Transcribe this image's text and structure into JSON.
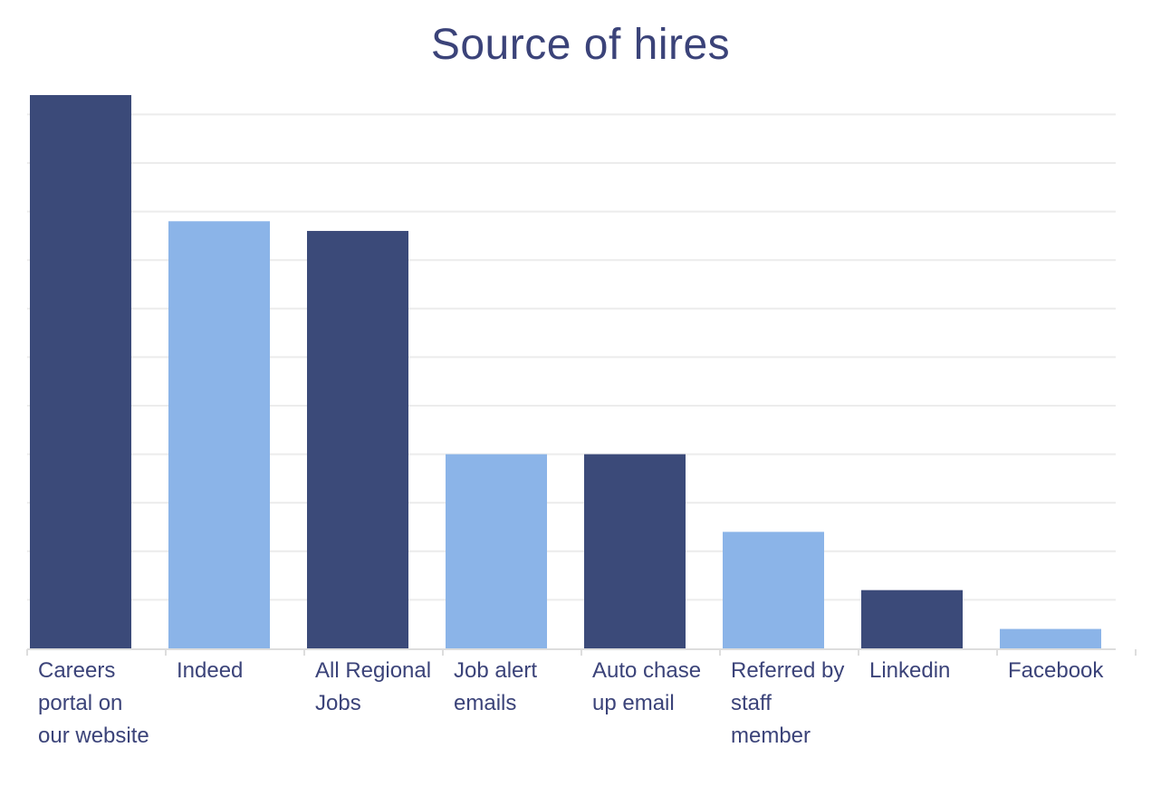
{
  "chart_data": {
    "type": "bar",
    "title": "Source of hires",
    "xlabel": "",
    "ylabel": "",
    "grid": true,
    "legend": "none",
    "ylim": [
      0,
      11
    ],
    "categories": [
      "Careers portal on our website",
      "Indeed",
      "All Regional Jobs",
      "Job alert emails",
      "Auto chase up email",
      "Referred by staff member",
      "Linkedin",
      "Facebook"
    ],
    "values": [
      11.4,
      8.8,
      8.6,
      4.0,
      4.0,
      2.4,
      1.2,
      0.4
    ],
    "colors": [
      "#3b4a79",
      "#8bb4e8",
      "#3b4a79",
      "#8bb4e8",
      "#3b4a79",
      "#8bb4e8",
      "#3b4a79",
      "#8bb4e8"
    ]
  },
  "style": {
    "title_color": "#3b4379",
    "gridline_color": "#ececec",
    "axis_color": "#dddddd"
  }
}
